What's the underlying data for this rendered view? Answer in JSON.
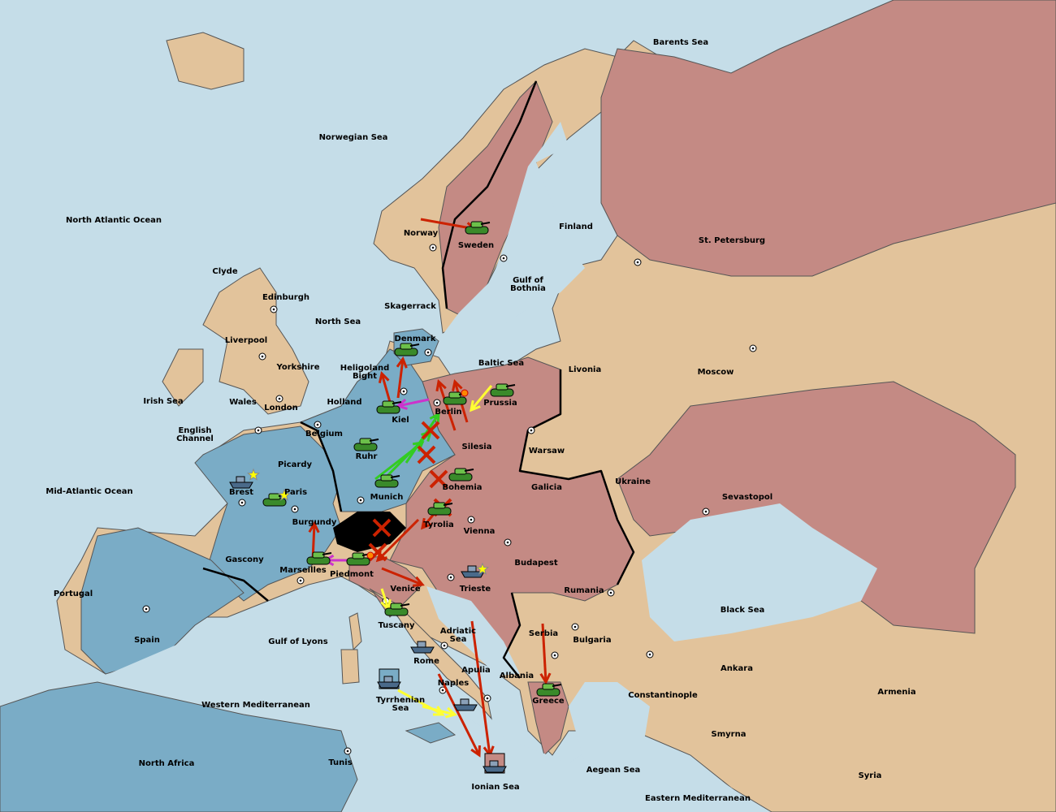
{
  "map": {
    "labels": [
      [
        "Barents Sea"
      ],
      [
        "Norwegian Sea"
      ],
      [
        "North Atlantic Ocean"
      ],
      [
        "Norway"
      ],
      [
        "Sweden"
      ],
      [
        "Finland"
      ],
      [
        "St. Petersburg"
      ],
      [
        "Gulf of",
        "Bothnia"
      ],
      [
        "Clyde"
      ],
      [
        "Edinburgh"
      ],
      [
        "Skagerrack"
      ],
      [
        "North Sea"
      ],
      [
        "Liverpool"
      ],
      [
        "Denmark"
      ],
      [
        "Baltic Sea"
      ],
      [
        "Livonia"
      ],
      [
        "Moscow"
      ],
      [
        "Yorkshire"
      ],
      [
        "Heligoland",
        "Bight"
      ],
      [
        "Irish Sea"
      ],
      [
        "Wales"
      ],
      [
        "London"
      ],
      [
        "Holland"
      ],
      [
        "Prussia"
      ],
      [
        "Kiel"
      ],
      [
        "Berlin"
      ],
      [
        "English",
        "Channel"
      ],
      [
        "Belgium"
      ],
      [
        "Silesia"
      ],
      [
        "Warsaw"
      ],
      [
        "Ruhr"
      ],
      [
        "Picardy"
      ],
      [
        "Ukraine"
      ],
      [
        "Mid-Atlantic Ocean"
      ],
      [
        "Brest"
      ],
      [
        "Paris"
      ],
      [
        "Munich"
      ],
      [
        "Bohemia"
      ],
      [
        "Galicia"
      ],
      [
        "Sevastopol"
      ],
      [
        "Burgundy"
      ],
      [
        "Tyrolia"
      ],
      [
        "Vienna"
      ],
      [
        "Gascony"
      ],
      [
        "Budapest"
      ],
      [
        "Marseilles"
      ],
      [
        "Piedmont"
      ],
      [
        "Trieste"
      ],
      [
        "Venice"
      ],
      [
        "Rumania"
      ],
      [
        "Portugal"
      ],
      [
        "Black Sea"
      ],
      [
        "Tuscany"
      ],
      [
        "Serbia"
      ],
      [
        "Adriatic",
        "Sea"
      ],
      [
        "Spain"
      ],
      [
        "Gulf of Lyons"
      ],
      [
        "Bulgaria"
      ],
      [
        "Rome"
      ],
      [
        "Apulia"
      ],
      [
        "Ankara"
      ],
      [
        "Albania"
      ],
      [
        "Naples"
      ],
      [
        "Constantinople"
      ],
      [
        "Armenia"
      ],
      [
        "Greece"
      ],
      [
        "Western Mediterranean"
      ],
      [
        "Tyrrhenian",
        "Sea"
      ],
      [
        "Smyrna"
      ],
      [
        "North Africa"
      ],
      [
        "Tunis"
      ],
      [
        "Aegean Sea"
      ],
      [
        "Syria"
      ],
      [
        "Ionian Sea"
      ],
      [
        "Eastern Mediterranean"
      ]
    ]
  }
}
